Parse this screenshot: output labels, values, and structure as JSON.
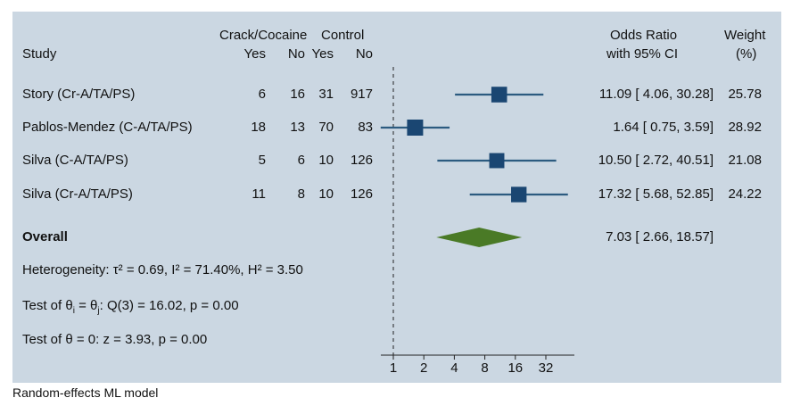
{
  "chart_data": {
    "type": "forest",
    "title": "",
    "x_axis": {
      "scale": "log2",
      "ticks": [
        1,
        2,
        4,
        8,
        16,
        32
      ],
      "tick_labels": [
        "1",
        "2",
        "4",
        "8",
        "16",
        "32"
      ],
      "range": [
        1,
        32
      ],
      "reference_line": 1
    },
    "headers": {
      "study": "Study",
      "group1": "Crack/Cocaine",
      "group2": "Control",
      "yes": "Yes",
      "no": "No",
      "or_line1": "Odds Ratio",
      "or_line2": "with 95% CI",
      "weight_line1": "Weight",
      "weight_line2": "(%)"
    },
    "studies": [
      {
        "name": "Story (Cr-A/TA/PS)",
        "g1_yes": "6",
        "g1_no": "16",
        "g2_yes": "31",
        "g2_no": "917",
        "or": 11.09,
        "lo": 4.06,
        "hi": 30.28,
        "ci_text": "11.09 [ 4.06, 30.28]",
        "weight": "25.78"
      },
      {
        "name": "Pablos-Mendez (C-A/TA/PS)",
        "g1_yes": "18",
        "g1_no": "13",
        "g2_yes": "70",
        "g2_no": "83",
        "or": 1.64,
        "lo": 0.75,
        "hi": 3.59,
        "ci_text": "1.64 [ 0.75, 3.59]",
        "weight": "28.92"
      },
      {
        "name": "Silva (C-A/TA/PS)",
        "g1_yes": "5",
        "g1_no": "6",
        "g2_yes": "10",
        "g2_no": "126",
        "or": 10.5,
        "lo": 2.72,
        "hi": 40.51,
        "ci_text": "10.50 [ 2.72, 40.51]",
        "weight": "21.08"
      },
      {
        "name": "Silva (Cr-A/TA/PS)",
        "g1_yes": "11",
        "g1_no": "8",
        "g2_yes": "10",
        "g2_no": "126",
        "or": 17.32,
        "lo": 5.68,
        "hi": 52.85,
        "ci_text": "17.32 [ 5.68, 52.85]",
        "weight": "24.22"
      }
    ],
    "overall": {
      "label": "Overall",
      "or": 7.03,
      "lo": 2.66,
      "hi": 18.57,
      "ci_text": "7.03 [ 2.66, 18.57]"
    },
    "stats": {
      "heterogeneity": "Heterogeneity: τ² = 0.69, I² = 71.40%, H² = 3.50",
      "test_equal_prefix": "Test of θ",
      "test_equal_i": "i",
      "test_equal_mid": " = θ",
      "test_equal_j": "j",
      "test_equal_suffix": ": Q(3) = 16.02, p = 0.00",
      "test_zero": "Test of θ = 0: z = 3.93, p = 0.00"
    },
    "footnote": "Random-effects ML model",
    "colors": {
      "background": "#cbd7e2",
      "marker": "#1a4672",
      "ci_line": "#2c5b80",
      "diamond": "#4a7a26",
      "axis": "#222222"
    }
  }
}
